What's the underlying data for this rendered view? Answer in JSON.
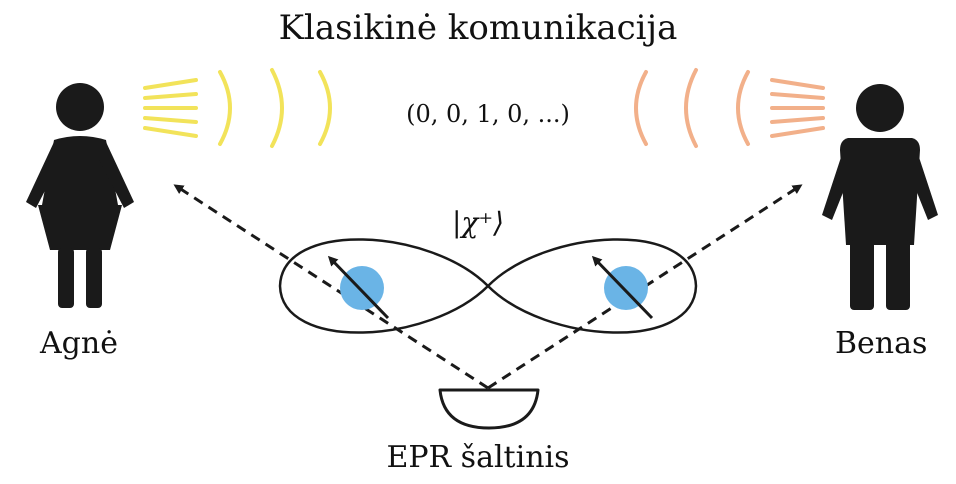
{
  "title": "Klasikinė komunikacija",
  "alice": {
    "name": "Agnė"
  },
  "bob": {
    "name": "Benas"
  },
  "source": {
    "name": "EPR šaltinis"
  },
  "classical_bits": "(0, 0, 1, 0, ...)",
  "state_label": "|χ⁺⟩",
  "colors": {
    "figure": "#1a1a1a",
    "alice_signal": "#f2e35a",
    "bob_signal": "#f2b08a",
    "particle": "#6ab4e6",
    "lines": "#1a1a1a"
  },
  "icons": [
    "woman-icon",
    "man-icon",
    "particle-icon",
    "detector-icon",
    "signal-waves-icon"
  ]
}
